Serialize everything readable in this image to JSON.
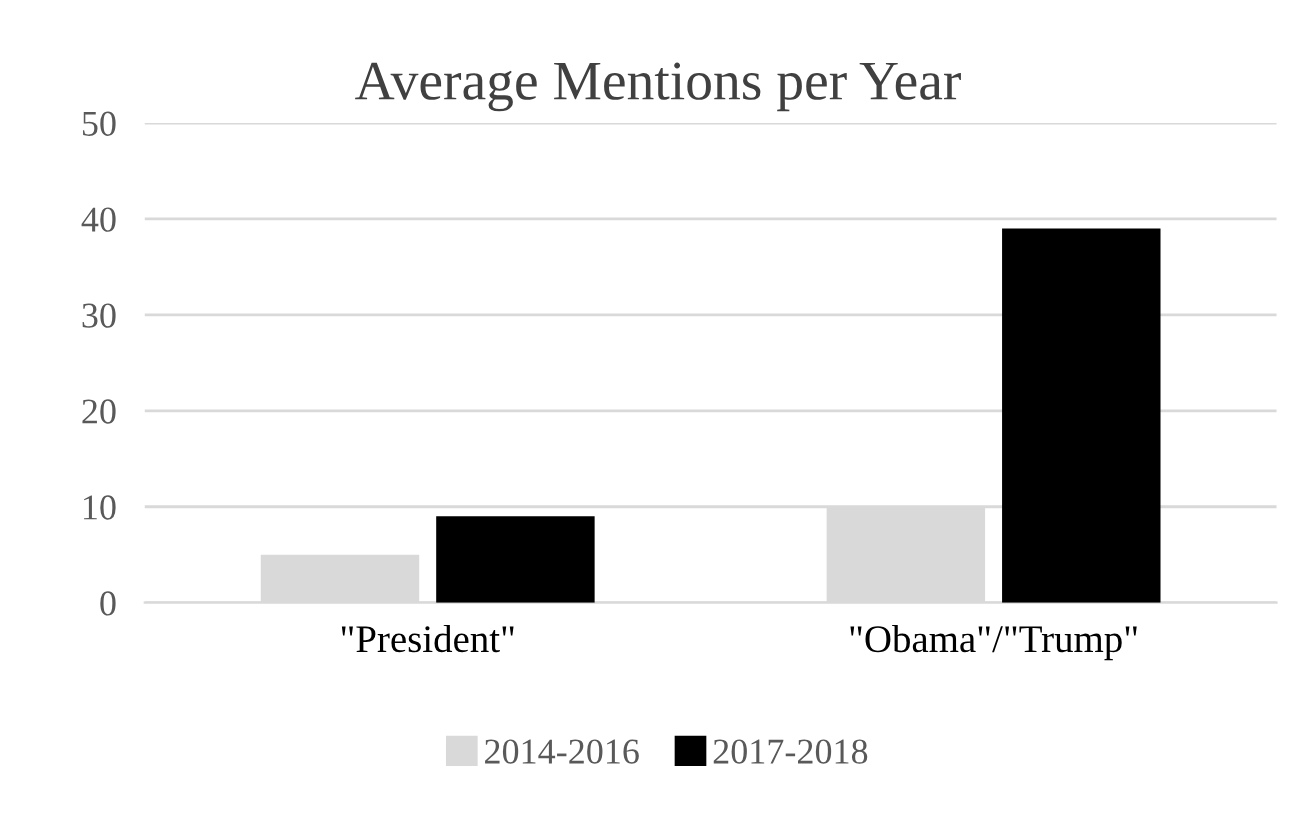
{
  "chart_data": {
    "type": "bar",
    "title": "Average Mentions per Year",
    "categories": [
      "\"President\"",
      "\"Obama\"/\"Trump\""
    ],
    "series": [
      {
        "name": "2014-2016",
        "color": "#d9d9d9",
        "values": [
          5,
          10
        ]
      },
      {
        "name": "2017-2018",
        "color": "#000000",
        "values": [
          9,
          39
        ]
      }
    ],
    "ylim": [
      0,
      50
    ],
    "yticks": [
      0,
      10,
      20,
      30,
      40,
      50
    ],
    "grid": "y",
    "legend": "bottom"
  }
}
